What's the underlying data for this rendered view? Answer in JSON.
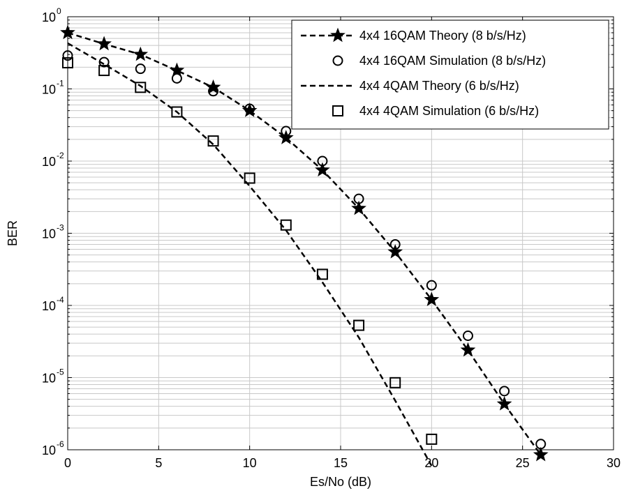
{
  "chart_data": {
    "type": "line",
    "title": "",
    "xlabel": "Es/No (dB)",
    "ylabel": "BER",
    "xlim": [
      0,
      30
    ],
    "ylim": [
      1e-06,
      1
    ],
    "yscale": "log",
    "grid": true,
    "legend_position": "top-right",
    "x_ticks": [
      "0",
      "5",
      "10",
      "15",
      "20",
      "25",
      "30"
    ],
    "y_ticks": [
      {
        "base": "10",
        "exp": "0"
      },
      {
        "base": "10",
        "exp": "-1"
      },
      {
        "base": "10",
        "exp": "-2"
      },
      {
        "base": "10",
        "exp": "-3"
      },
      {
        "base": "10",
        "exp": "-4"
      },
      {
        "base": "10",
        "exp": "-5"
      },
      {
        "base": "10",
        "exp": "-6"
      }
    ],
    "series": [
      {
        "name": "4x4 16QAM Theory (8 b/s/Hz)",
        "style": "dashed",
        "marker": "star",
        "color": "#000000",
        "x": [
          0,
          2,
          4,
          6,
          8,
          10,
          12,
          14,
          16,
          18,
          20,
          22,
          24,
          26
        ],
        "y": [
          0.6,
          0.42,
          0.3,
          0.18,
          0.105,
          0.05,
          0.021,
          0.0075,
          0.0022,
          0.00055,
          0.00012,
          2.4e-05,
          4.3e-06,
          8.5e-07
        ]
      },
      {
        "name": "4x4 16QAM Simulation (8 b/s/Hz)",
        "style": "none",
        "marker": "circle",
        "color": "#000000",
        "x": [
          0,
          2,
          4,
          6,
          8,
          10,
          12,
          14,
          16,
          18,
          20,
          22,
          24,
          26
        ],
        "y": [
          0.29,
          0.235,
          0.19,
          0.14,
          0.093,
          0.053,
          0.026,
          0.01,
          0.003,
          0.0007,
          0.00019,
          3.8e-05,
          6.5e-06,
          1.2e-06
        ]
      },
      {
        "name": "4x4 4QAM Theory (6 b/s/Hz)",
        "style": "dashed",
        "marker": "none",
        "color": "#000000",
        "x": [
          0,
          2,
          4,
          6,
          8,
          10,
          12,
          14,
          16,
          18,
          20
        ],
        "y": [
          0.43,
          0.22,
          0.11,
          0.048,
          0.017,
          0.0045,
          0.0011,
          0.00021,
          3.6e-05,
          4.8e-06,
          6e-07
        ]
      },
      {
        "name": "4x4 4QAM Simulation (6 b/s/Hz)",
        "style": "none",
        "marker": "square",
        "color": "#000000",
        "x": [
          0,
          2,
          4,
          6,
          8,
          10,
          12,
          14,
          16,
          18,
          20
        ],
        "y": [
          0.23,
          0.18,
          0.105,
          0.048,
          0.019,
          0.0058,
          0.0013,
          0.00027,
          5.3e-05,
          8.5e-06,
          1.4e-06
        ]
      }
    ]
  }
}
